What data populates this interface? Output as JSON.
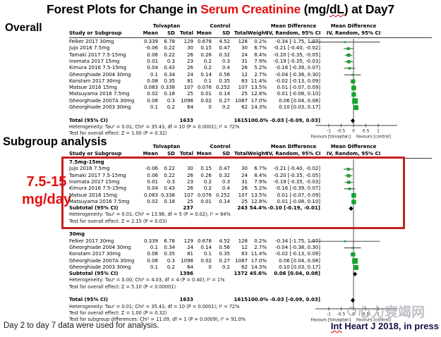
{
  "title": {
    "parts": [
      {
        "text": "Forest Plots for Change in ",
        "red": false,
        "squiggle": false
      },
      {
        "text": "Serum Creatinine",
        "red": true,
        "squiggle": false
      },
      {
        "text": " (mg/",
        "red": false,
        "squiggle": false
      },
      {
        "text": "dL",
        "red": false,
        "squiggle": true
      },
      {
        "text": ") at Day7",
        "red": false,
        "squiggle": false
      }
    ]
  },
  "labels": {
    "overall": "Overall",
    "subgroup": "Subgroup analysis",
    "side_line1": "7.5-15",
    "side_line2": "mg/day"
  },
  "table_headers": {
    "study": "Study or Subgroup",
    "group1": "Tolvaptan",
    "group2": "Control",
    "mean": "Mean",
    "sd": "SD",
    "total": "Total",
    "weight": "Weight",
    "md": "Mean Difference",
    "method": "IV, Random, 95% CI"
  },
  "axis": {
    "ticks": [
      {
        "label": "-1",
        "value": -1
      },
      {
        "label": "-0.5",
        "value": -0.5
      },
      {
        "label": "0",
        "value": 0
      },
      {
        "label": "0.5",
        "value": 0.5
      },
      {
        "label": "1",
        "value": 1
      }
    ],
    "favours_left": "Favours [tolvaptan]",
    "favours_right": "Favours [control]"
  },
  "footer": {
    "note": "Day 2 to day 7 data were used for analysis.",
    "citation_parts": [
      {
        "text": "Int",
        "squiggle": true
      },
      {
        "text": " Heart J 2018, in press",
        "squiggle": false
      }
    ],
    "watermark": "心力衰竭网"
  },
  "colors": {
    "title_red": "#e50e0e",
    "side_red": "#e50e0e",
    "box_red": "#c7201e",
    "marker_green": "#14a52d",
    "diamond_black": "#000000",
    "ci_gray": "#4d4d4d",
    "axis_gray": "#404040",
    "citation_navy": "#101048",
    "watermark_gray": "#8b919c"
  },
  "chart_data": [
    {
      "type": "forest",
      "title": "Overall",
      "effect_measure": "Mean Difference, IV, Random, 95% CI",
      "x_ticks": [
        -1,
        -0.5,
        0,
        0.5,
        1
      ],
      "xlim": [
        -1.75,
        1.75
      ],
      "favours_left": "Favours [tolvaptan]",
      "favours_right": "Favours [control]",
      "studies": [
        {
          "name": "Felker 2017 30mg",
          "t_mean": "0.339",
          "t_sd": "6.78",
          "t_total": "129",
          "c_mean": "0.678",
          "c_sd": "4.52",
          "c_total": "128",
          "weight": "0.2%",
          "weight_value": 0.2,
          "ci_text": "-0.34 [-1.75, 1.07]",
          "est": -0.34,
          "lo": -1.75,
          "hi": 1.07
        },
        {
          "name": "Jujo 2016 7.5mg",
          "t_mean": "-0.06",
          "t_sd": "0.22",
          "t_total": "30",
          "c_mean": "0.15",
          "c_sd": "0.47",
          "c_total": "30",
          "weight": "6.7%",
          "weight_value": 6.7,
          "ci_text": "-0.21 [-0.40, -0.02]",
          "est": -0.21,
          "lo": -0.4,
          "hi": -0.02
        },
        {
          "name": "Tamaki 2017 7.5-15mg",
          "t_mean": "0.06",
          "t_sd": "0.22",
          "t_total": "26",
          "c_mean": "0.26",
          "c_sd": "0.32",
          "c_total": "24",
          "weight": "8.4%",
          "weight_value": 8.4,
          "ci_text": "-0.20 [-0.35, -0.05]",
          "est": -0.2,
          "lo": -0.35,
          "hi": -0.05
        },
        {
          "name": "Inomata 2017 15mg",
          "t_mean": "0.01",
          "t_sd": "0.3",
          "t_total": "23",
          "c_mean": "0.2",
          "c_sd": "0.3",
          "c_total": "31",
          "weight": "7.9%",
          "weight_value": 7.9,
          "ci_text": "-0.19 [-0.35, -0.03]",
          "est": -0.19,
          "lo": -0.35,
          "hi": -0.03
        },
        {
          "name": "Kimura 2016 7.5-15mg",
          "t_mean": "0.04",
          "t_sd": "0.43",
          "t_total": "26",
          "c_mean": "0.2",
          "c_sd": "0.4",
          "c_total": "26",
          "weight": "5.2%",
          "weight_value": 5.2,
          "ci_text": "-0.16 [-0.39, 0.07]",
          "est": -0.16,
          "lo": -0.39,
          "hi": 0.07
        },
        {
          "name": "Gheorghiade 2004 30mg",
          "t_mean": "0.1",
          "t_sd": "0.34",
          "t_total": "24",
          "c_mean": "0.14",
          "c_sd": "0.56",
          "c_total": "12",
          "weight": "2.7%",
          "weight_value": 2.7,
          "ci_text": "-0.04 [-0.38, 0.30]",
          "est": -0.04,
          "lo": -0.38,
          "hi": 0.3
        },
        {
          "name": "Konstam 2017 30mg",
          "t_mean": "0.08",
          "t_sd": "0.35",
          "t_total": "81",
          "c_mean": "0.1",
          "c_sd": "0.35",
          "c_total": "83",
          "weight": "11.4%",
          "weight_value": 11.4,
          "ci_text": "-0.02 [-0.13, 0.09]",
          "est": -0.02,
          "lo": -0.13,
          "hi": 0.09
        },
        {
          "name": "Matsue 2016 15mg",
          "t_mean": "0.083",
          "t_sd": "0.338",
          "t_total": "107",
          "c_mean": "0.076",
          "c_sd": "0.252",
          "c_total": "107",
          "weight": "13.5%",
          "weight_value": 13.5,
          "ci_text": "0.01 [-0.07, 0.09]",
          "est": 0.01,
          "lo": -0.07,
          "hi": 0.09
        },
        {
          "name": "Matsuyama 2016 7.5mg",
          "t_mean": "0.02",
          "t_sd": "0.18",
          "t_total": "25",
          "c_mean": "0.01",
          "c_sd": "0.14",
          "c_total": "25",
          "weight": "12.8%",
          "weight_value": 12.8,
          "ci_text": "0.01 [-0.08, 0.10]",
          "est": 0.01,
          "lo": -0.08,
          "hi": 0.1
        },
        {
          "name": "Gheorghiade 2007A 30mg",
          "t_mean": "0.08",
          "t_sd": "0.3",
          "t_total": "1098",
          "c_mean": "0.02",
          "c_sd": "0.27",
          "c_total": "1087",
          "weight": "17.0%",
          "weight_value": 17.0,
          "ci_text": "0.06 [0.04, 0.08]",
          "est": 0.06,
          "lo": 0.04,
          "hi": 0.08
        },
        {
          "name": "Gheorghiade 2003 30mg",
          "t_mean": "0.1",
          "t_sd": "0.2",
          "t_total": "64",
          "c_mean": "0",
          "c_sd": "0.2",
          "c_total": "62",
          "weight": "14.3%",
          "weight_value": 14.3,
          "ci_text": "0.10 [0.03, 0.17]",
          "est": 0.1,
          "lo": 0.03,
          "hi": 0.17
        }
      ],
      "total": {
        "name": "Total (95% CI)",
        "t_total": "1633",
        "c_total": "1615",
        "weight": "100.0%",
        "ci_text": "-0.03 [-0.09, 0.03]",
        "est": -0.03,
        "lo": -0.09,
        "hi": 0.03
      },
      "heterogeneity": "Heterogeneity: Tau² = 0.01; Chi² = 35.43, df = 10 (P = 0.0001); I² = 72%",
      "overall_effect": "Test for overall effect: Z = 1.00 (P = 0.32)"
    },
    {
      "type": "forest",
      "title": "Subgroup analysis",
      "effect_measure": "Mean Difference, IV, Random, 95% CI",
      "x_ticks": [
        -1,
        -0.5,
        0,
        0.5,
        1
      ],
      "xlim": [
        -1.75,
        1.75
      ],
      "favours_left": "Favours [tolvaptan]",
      "favours_right": "Favours [control]",
      "groups": [
        {
          "name": "7.5mg-15mg",
          "studies": [
            {
              "name": "Jujo 2016 7.5mg",
              "t_mean": "-0.06",
              "t_sd": "0.22",
              "t_total": "30",
              "c_mean": "0.15",
              "c_sd": "0.47",
              "c_total": "30",
              "weight": "6.7%",
              "weight_value": 6.7,
              "ci_text": "-0.21 [-0.40, -0.02]",
              "est": -0.21,
              "lo": -0.4,
              "hi": -0.02
            },
            {
              "name": "Tamaki 2017 7.5-15mg",
              "t_mean": "0.06",
              "t_sd": "0.22",
              "t_total": "26",
              "c_mean": "0.26",
              "c_sd": "0.32",
              "c_total": "24",
              "weight": "8.4%",
              "weight_value": 8.4,
              "ci_text": "-0.20 [-0.35, -0.05]",
              "est": -0.2,
              "lo": -0.35,
              "hi": -0.05
            },
            {
              "name": "Inomata 2017 15mg",
              "t_mean": "0.01",
              "t_sd": "0.3",
              "t_total": "23",
              "c_mean": "0.2",
              "c_sd": "0.3",
              "c_total": "31",
              "weight": "7.9%",
              "weight_value": 7.9,
              "ci_text": "-0.19 [-0.35, -0.03]",
              "est": -0.19,
              "lo": -0.35,
              "hi": -0.03
            },
            {
              "name": "Kimura 2016 7.5-15mg",
              "t_mean": "0.04",
              "t_sd": "0.43",
              "t_total": "26",
              "c_mean": "0.2",
              "c_sd": "0.4",
              "c_total": "26",
              "weight": "5.2%",
              "weight_value": 5.2,
              "ci_text": "-0.16 [-0.39, 0.07]",
              "est": -0.16,
              "lo": -0.39,
              "hi": 0.07
            },
            {
              "name": "Matsue 2016 15mg",
              "t_mean": "0.083",
              "t_sd": "0.338",
              "t_total": "107",
              "c_mean": "0.076",
              "c_sd": "0.252",
              "c_total": "107",
              "weight": "13.5%",
              "weight_value": 13.5,
              "ci_text": "0.01 [-0.07, 0.09]",
              "est": 0.01,
              "lo": -0.07,
              "hi": 0.09
            },
            {
              "name": "Matsuyama 2016 7.5mg",
              "t_mean": "0.02",
              "t_sd": "0.18",
              "t_total": "25",
              "c_mean": "0.01",
              "c_sd": "0.14",
              "c_total": "25",
              "weight": "12.8%",
              "weight_value": 12.8,
              "ci_text": "0.01 [-0.08, 0.10]",
              "est": 0.01,
              "lo": -0.08,
              "hi": 0.1
            }
          ],
          "subtotal": {
            "name": "Subtotal (95% CI)",
            "t_total": "237",
            "c_total": "243",
            "weight": "54.4%",
            "ci_text": "-0.10 [-0.19, -0.01]",
            "est": -0.1,
            "lo": -0.19,
            "hi": -0.01
          },
          "heterogeneity": "Heterogeneity: Tau² = 0.01; Chi² = 13.96, df = 5 (P = 0.02); I² = 64%",
          "overall_effect": "Test for overall effect: Z = 2.15 (P = 0.03)"
        },
        {
          "name": "30mg",
          "studies": [
            {
              "name": "Felker 2017 30mg",
              "t_mean": "0.339",
              "t_sd": "6.78",
              "t_total": "129",
              "c_mean": "0.678",
              "c_sd": "4.52",
              "c_total": "128",
              "weight": "0.2%",
              "weight_value": 0.2,
              "ci_text": "-0.34 [-1.75, 1.07]",
              "est": -0.34,
              "lo": -1.75,
              "hi": 1.07
            },
            {
              "name": "Gheorghiade 2004 30mg",
              "t_mean": "0.1",
              "t_sd": "0.34",
              "t_total": "24",
              "c_mean": "0.14",
              "c_sd": "0.56",
              "c_total": "12",
              "weight": "2.7%",
              "weight_value": 2.7,
              "ci_text": "-0.04 [-0.38, 0.30]",
              "est": -0.04,
              "lo": -0.38,
              "hi": 0.3
            },
            {
              "name": "Konstam 2017 30mg",
              "t_mean": "0.08",
              "t_sd": "0.35",
              "t_total": "81",
              "c_mean": "0.1",
              "c_sd": "0.35",
              "c_total": "83",
              "weight": "11.4%",
              "weight_value": 11.4,
              "ci_text": "-0.02 [-0.13, 0.09]",
              "est": -0.02,
              "lo": -0.13,
              "hi": 0.09
            },
            {
              "name": "Gheorghiade 2007A 30mg",
              "t_mean": "0.08",
              "t_sd": "0.3",
              "t_total": "1098",
              "c_mean": "0.02",
              "c_sd": "0.27",
              "c_total": "1087",
              "weight": "17.0%",
              "weight_value": 17.0,
              "ci_text": "0.06 [0.04, 0.08]",
              "est": 0.06,
              "lo": 0.04,
              "hi": 0.08
            },
            {
              "name": "Gheorghiade 2003 30mg",
              "t_mean": "0.1",
              "t_sd": "0.2",
              "t_total": "64",
              "c_mean": "0",
              "c_sd": "0.2",
              "c_total": "62",
              "weight": "14.3%",
              "weight_value": 14.3,
              "ci_text": "0.10 [0.03, 0.17]",
              "est": 0.1,
              "lo": 0.03,
              "hi": 0.17
            }
          ],
          "subtotal": {
            "name": "Subtotal (95% CI)",
            "t_total": "1396",
            "c_total": "1372",
            "weight": "45.6%",
            "ci_text": "0.06 [0.04, 0.08]",
            "est": 0.06,
            "lo": 0.04,
            "hi": 0.08
          },
          "heterogeneity": "Heterogeneity: Tau² = 0.00; Chi² = 4.03, df = 4 (P = 0.40); I² = 1%",
          "overall_effect": "Test for overall effect: Z = 5.10 (P < 0.00001)"
        }
      ],
      "total": {
        "name": "Total (95% CI)",
        "t_total": "1633",
        "c_total": "1615",
        "weight": "100.0%",
        "ci_text": "-0.03 [-0.09, 0.03]",
        "est": -0.03,
        "lo": -0.09,
        "hi": 0.03
      },
      "heterogeneity": "Heterogeneity: Tau² = 0.01; Chi² = 35.43, df = 10 (P = 0.0001); I² = 72%",
      "overall_effect": "Test for overall effect: Z = 1.00 (P = 0.32)",
      "subgroup_diff": "Test for subgroup differences: Chi² = 11.09, df = 1 (P = 0.0009), I² = 91.0%"
    }
  ]
}
